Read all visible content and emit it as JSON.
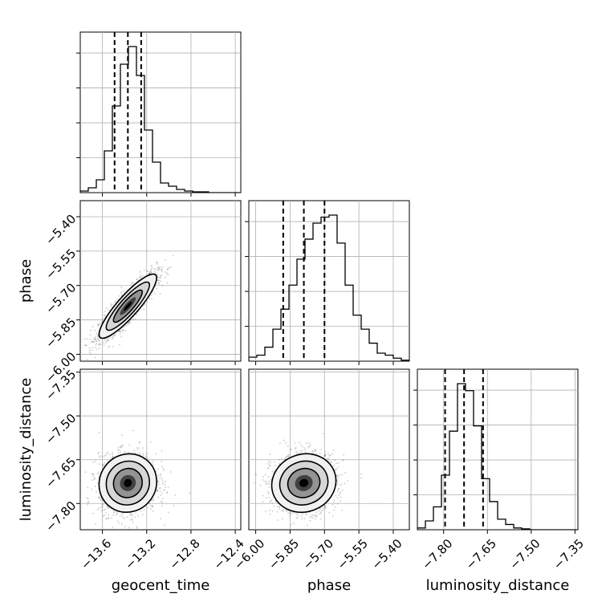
{
  "chart_data": {
    "type": "corner",
    "parameters": [
      "geocent_time",
      "phase",
      "luminosity_distance"
    ],
    "axis_labels": [
      "geocent_time",
      "phase",
      "luminosity_distance"
    ],
    "ranges": [
      [
        -13.8,
        -12.35
      ],
      [
        -6.03,
        -5.33
      ],
      [
        -7.89,
        -7.34
      ]
    ],
    "ticks": [
      [
        -13.6,
        -13.2,
        -12.8,
        -12.4
      ],
      [
        -6.0,
        -5.85,
        -5.7,
        -5.55,
        -5.4
      ],
      [
        -7.8,
        -7.65,
        -7.5,
        -7.35
      ]
    ],
    "tick_labels": [
      [
        "−13.6",
        "−13.2",
        "−12.8",
        "−12.4"
      ],
      [
        "−6.00",
        "−5.85",
        "−5.70",
        "−5.55",
        "−5.40"
      ],
      [
        "−7.80",
        "−7.65",
        "−7.50",
        "−7.35"
      ]
    ],
    "quantiles": [
      [
        -13.49,
        -13.37,
        -13.25
      ],
      [
        -5.88,
        -5.79,
        -5.7
      ],
      [
        -7.795,
        -7.73,
        -7.665
      ]
    ],
    "histograms": [
      {
        "parameter": "geocent_time",
        "bin_edges_range": [
          -13.8,
          -12.35
        ],
        "counts": [
          0.1,
          0.3,
          0.8,
          2.6,
          5.4,
          8.0,
          9.1,
          7.3,
          3.9,
          1.9,
          0.6,
          0.4,
          0.2,
          0.1,
          0.05,
          0.05,
          0,
          0,
          0,
          0
        ]
      },
      {
        "parameter": "phase",
        "bin_edges_range": [
          -6.03,
          -5.33
        ],
        "counts": [
          0.2,
          0.3,
          0.7,
          1.6,
          2.6,
          3.8,
          5.1,
          6.1,
          6.9,
          7.2,
          7.3,
          5.9,
          3.8,
          2.3,
          1.6,
          0.9,
          0.4,
          0.3,
          0.15,
          0.05
        ]
      },
      {
        "parameter": "luminosity_distance",
        "bin_edges_range": [
          -7.89,
          -7.34
        ],
        "counts": [
          0.1,
          0.5,
          1.3,
          3.1,
          5.6,
          8.3,
          7.9,
          5.9,
          2.9,
          1.6,
          0.6,
          0.3,
          0.1,
          0.05,
          0,
          0,
          0,
          0,
          0,
          0
        ]
      }
    ],
    "scatter_2d": [
      {
        "x_parameter": "geocent_time",
        "y_parameter": "phase",
        "mean": [
          -13.37,
          -5.79
        ],
        "std": [
          0.13,
          0.07
        ],
        "correlation": 0.88
      },
      {
        "x_parameter": "geocent_time",
        "y_parameter": "luminosity_distance",
        "mean": [
          -13.37,
          -7.73
        ],
        "std": [
          0.13,
          0.05
        ],
        "correlation": 0.05
      },
      {
        "x_parameter": "phase",
        "y_parameter": "luminosity_distance",
        "mean": [
          -5.79,
          -7.73
        ],
        "std": [
          0.07,
          0.05
        ],
        "correlation": 0.08
      }
    ],
    "grid": true,
    "colors": {
      "line": "#000000",
      "grid": "#b0b0b0",
      "points": "#666666",
      "quantile": "#000000"
    }
  }
}
